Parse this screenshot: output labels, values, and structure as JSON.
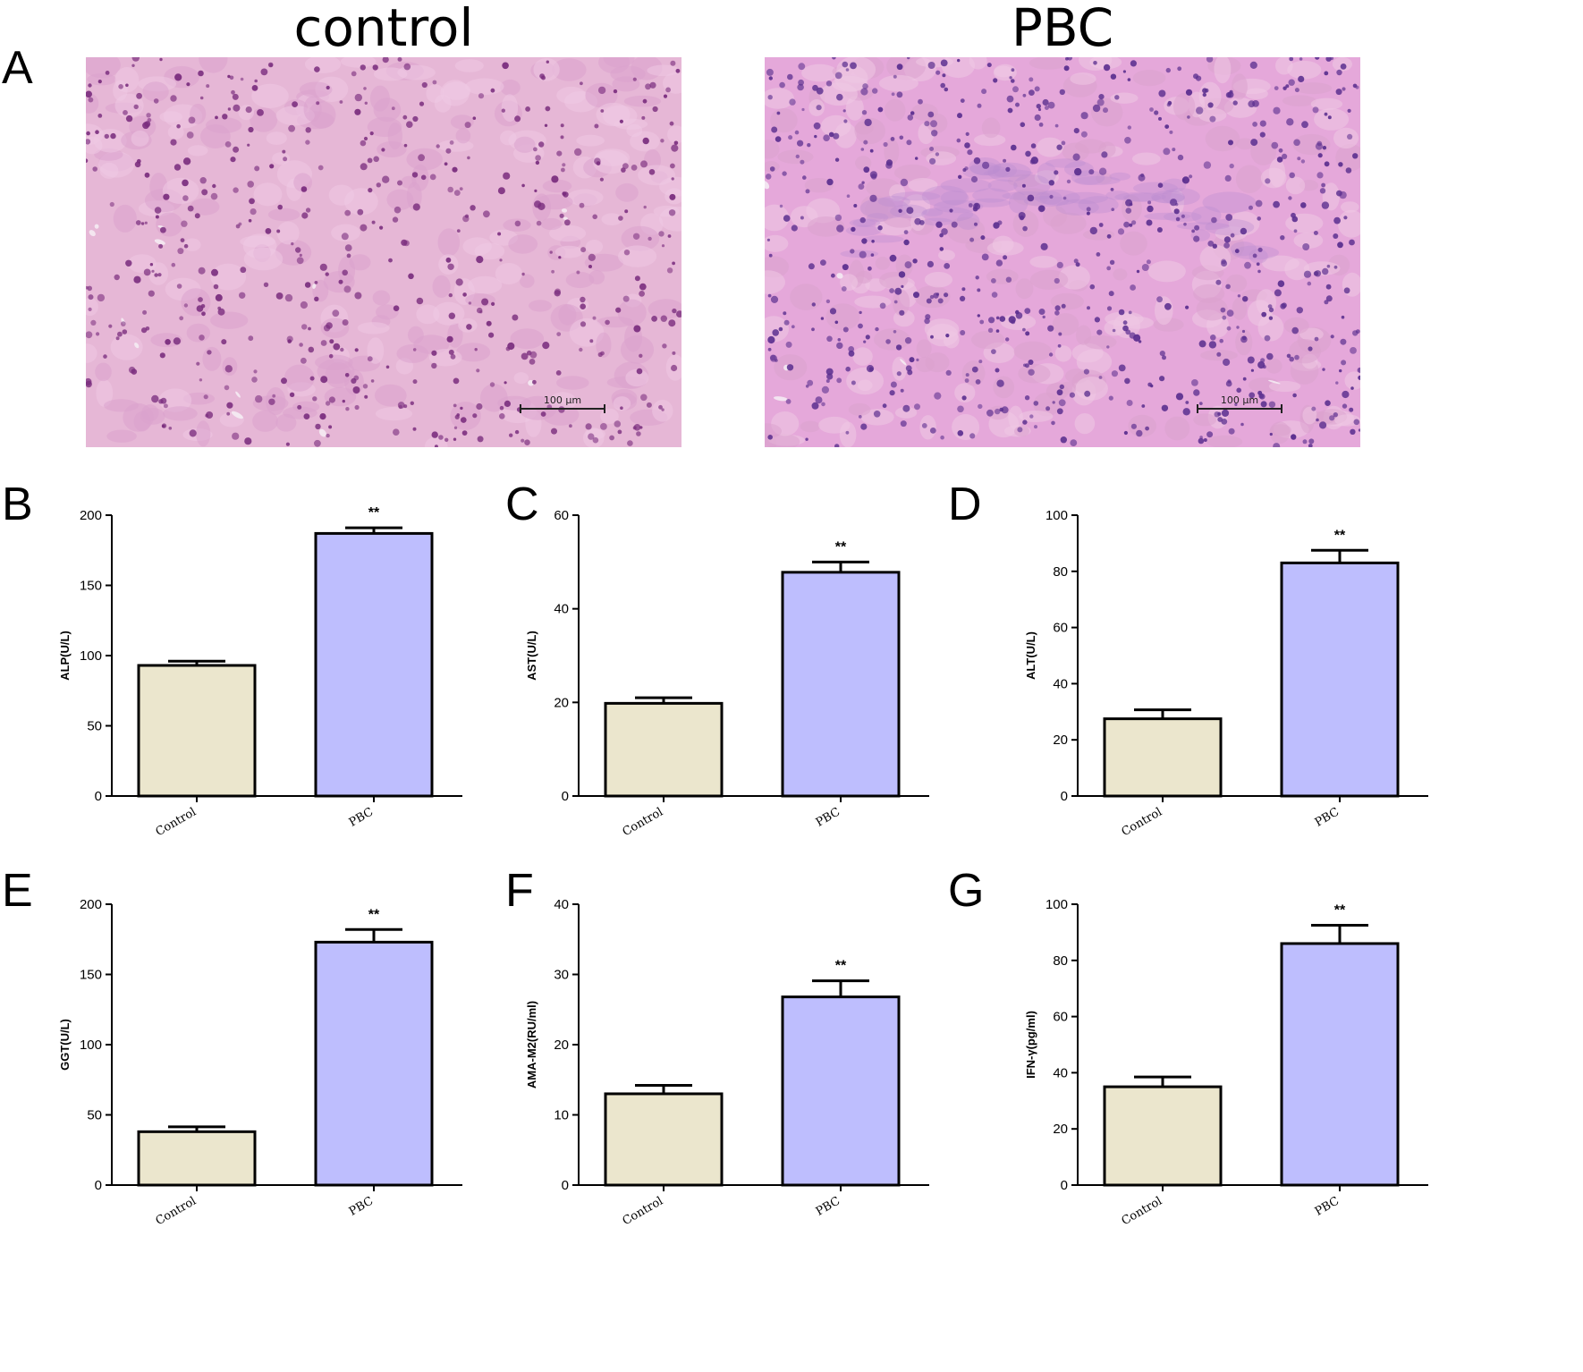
{
  "panel_letters": [
    "A",
    "B",
    "C",
    "D",
    "E",
    "F",
    "G"
  ],
  "histology": [
    {
      "title": "control",
      "scale_label": "100 μm",
      "base_color": "#e6b7d6",
      "nucleus_color": "#7a2d7e"
    },
    {
      "title": "PBC",
      "scale_label": "100 μm",
      "base_color": "#e5a8da",
      "nucleus_color": "#5b2f8f"
    }
  ],
  "colors": {
    "control_bar": "#ebe6cd",
    "pbc_bar": "#bebefe",
    "axis": "#000000"
  },
  "chart_data": [
    {
      "type": "bar",
      "title": "",
      "ylabel": "ALP(U/L)",
      "categories": [
        "Control",
        "PBC"
      ],
      "values": [
        93,
        187
      ],
      "errors": [
        3,
        4
      ],
      "significance": [
        "",
        "**"
      ],
      "ylim": [
        0,
        200
      ],
      "yticks": [
        0,
        50,
        100,
        150,
        200
      ]
    },
    {
      "type": "bar",
      "title": "",
      "ylabel": "AST(U/L)",
      "categories": [
        "Control",
        "PBC"
      ],
      "values": [
        19.8,
        47.8
      ],
      "errors": [
        1.2,
        2.2
      ],
      "significance": [
        "",
        "**"
      ],
      "ylim": [
        0,
        60
      ],
      "yticks": [
        0,
        20,
        40,
        60
      ]
    },
    {
      "type": "bar",
      "title": "",
      "ylabel": "ALT(U/L)",
      "categories": [
        "Control",
        "PBC"
      ],
      "values": [
        27.5,
        83
      ],
      "errors": [
        3.2,
        4.5
      ],
      "significance": [
        "",
        "**"
      ],
      "ylim": [
        0,
        100
      ],
      "yticks": [
        0,
        20,
        40,
        60,
        80,
        100
      ]
    },
    {
      "type": "bar",
      "title": "",
      "ylabel": "GGT(U/L)",
      "categories": [
        "Control",
        "PBC"
      ],
      "values": [
        38,
        173
      ],
      "errors": [
        3.5,
        9
      ],
      "significance": [
        "",
        "**"
      ],
      "ylim": [
        0,
        200
      ],
      "yticks": [
        0,
        50,
        100,
        150,
        200
      ]
    },
    {
      "type": "bar",
      "title": "",
      "ylabel": "AMA-M2(RU/ml)",
      "categories": [
        "Control",
        "PBC"
      ],
      "values": [
        13,
        26.8
      ],
      "errors": [
        1.2,
        2.3
      ],
      "significance": [
        "",
        "**"
      ],
      "ylim": [
        0,
        40
      ],
      "yticks": [
        0,
        10,
        20,
        30,
        40
      ]
    },
    {
      "type": "bar",
      "title": "",
      "ylabel": "IFN-γ(pg/ml)",
      "categories": [
        "Control",
        "PBC"
      ],
      "values": [
        35,
        86
      ],
      "errors": [
        3.5,
        6.5
      ],
      "significance": [
        "",
        "**"
      ],
      "ylim": [
        0,
        100
      ],
      "yticks": [
        0,
        20,
        40,
        60,
        80,
        100
      ]
    }
  ]
}
